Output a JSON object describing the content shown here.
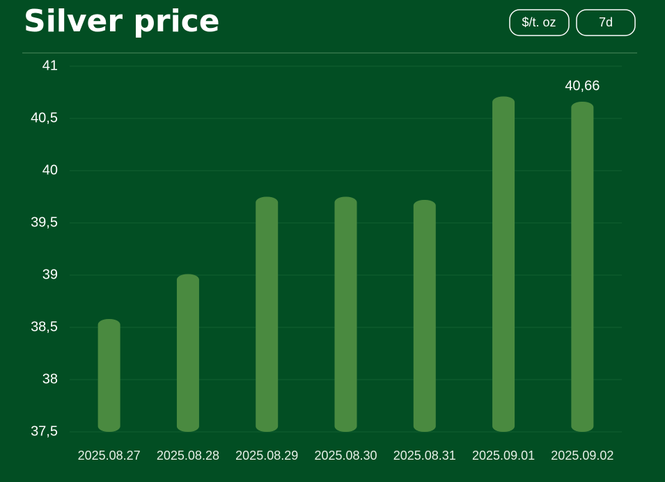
{
  "chart_data": {
    "type": "bar",
    "title": "Silver price",
    "categories": [
      "2025.08.27",
      "2025.08.28",
      "2025.08.29",
      "2025.08.30",
      "2025.08.31",
      "2025.09.01",
      "2025.09.02"
    ],
    "values": [
      38.58,
      39.01,
      39.75,
      39.75,
      39.72,
      40.71,
      40.66
    ],
    "value_labels": [
      null,
      null,
      null,
      null,
      null,
      null,
      "40,66"
    ],
    "color": "#4a8a40",
    "ylim": [
      37.5,
      41
    ],
    "yticks": [
      {
        "value": 37.5,
        "label": "37,5"
      },
      38,
      {
        "value": 38.5,
        "label": "38,5"
      },
      39,
      {
        "value": 39.5,
        "label": "39,5"
      },
      40,
      {
        "value": 40.5,
        "label": "40,5"
      },
      41
    ],
    "grid": true
  },
  "controls": {
    "unit": "$/t. oz",
    "period": "7d"
  }
}
